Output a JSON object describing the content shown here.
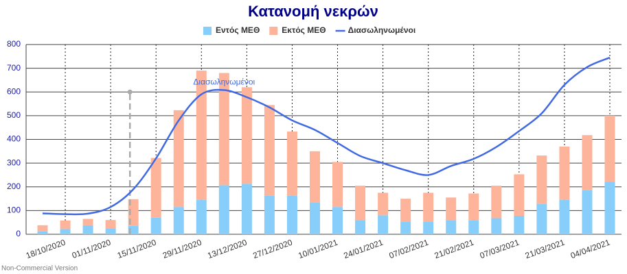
{
  "chart_data": {
    "type": "bar",
    "stacked": true,
    "title": "Κατανομή νεκρών",
    "categories": [
      null,
      "18/10/2020",
      null,
      "01/11/2020",
      null,
      "15/11/2020",
      null,
      "29/11/2020",
      null,
      "13/12/2020",
      null,
      "27/12/2020",
      null,
      "10/01/2021",
      null,
      "24/01/2021",
      null,
      "07/02/2021",
      null,
      "21/02/2021",
      null,
      "07/03/2021",
      null,
      "21/03/2021",
      null,
      "04/04/2021"
    ],
    "series": [
      {
        "name": "Εντός ΜΕΘ",
        "type": "bar",
        "color": "#87cefa",
        "values": [
          12,
          22,
          38,
          25,
          35,
          70,
          115,
          145,
          207,
          213,
          162,
          162,
          133,
          115,
          60,
          80,
          53,
          53,
          60,
          58,
          68,
          78,
          128,
          145,
          187,
          222
        ]
      },
      {
        "name": "Εκτός ΜΕΘ",
        "type": "bar",
        "color": "#fdb49a",
        "values": [
          26,
          36,
          27,
          35,
          113,
          252,
          408,
          545,
          473,
          407,
          383,
          271,
          217,
          190,
          145,
          95,
          97,
          122,
          95,
          114,
          137,
          175,
          204,
          225,
          231,
          278
        ]
      },
      {
        "name": "Διασωληνωμένοι",
        "type": "line",
        "color": "#4169e1",
        "values": [
          88,
          85,
          87,
          115,
          190,
          320,
          480,
          590,
          608,
          578,
          535,
          480,
          440,
          385,
          330,
          300,
          270,
          250,
          288,
          318,
          368,
          435,
          510,
          630,
          705,
          745
        ]
      }
    ],
    "annotations": [
      {
        "text": "Διασωληνωμένοι",
        "category": 8,
        "value": 640
      }
    ],
    "reference_line": {
      "category": 3.85,
      "value": 600,
      "color": "#aaaaaa"
    },
    "watermark": "Non-Commercial Version",
    "ylim": [
      0,
      800
    ],
    "yticks": [
      0,
      100,
      200,
      300,
      400,
      500,
      600,
      700,
      800
    ],
    "grid": true,
    "legend": "top"
  }
}
